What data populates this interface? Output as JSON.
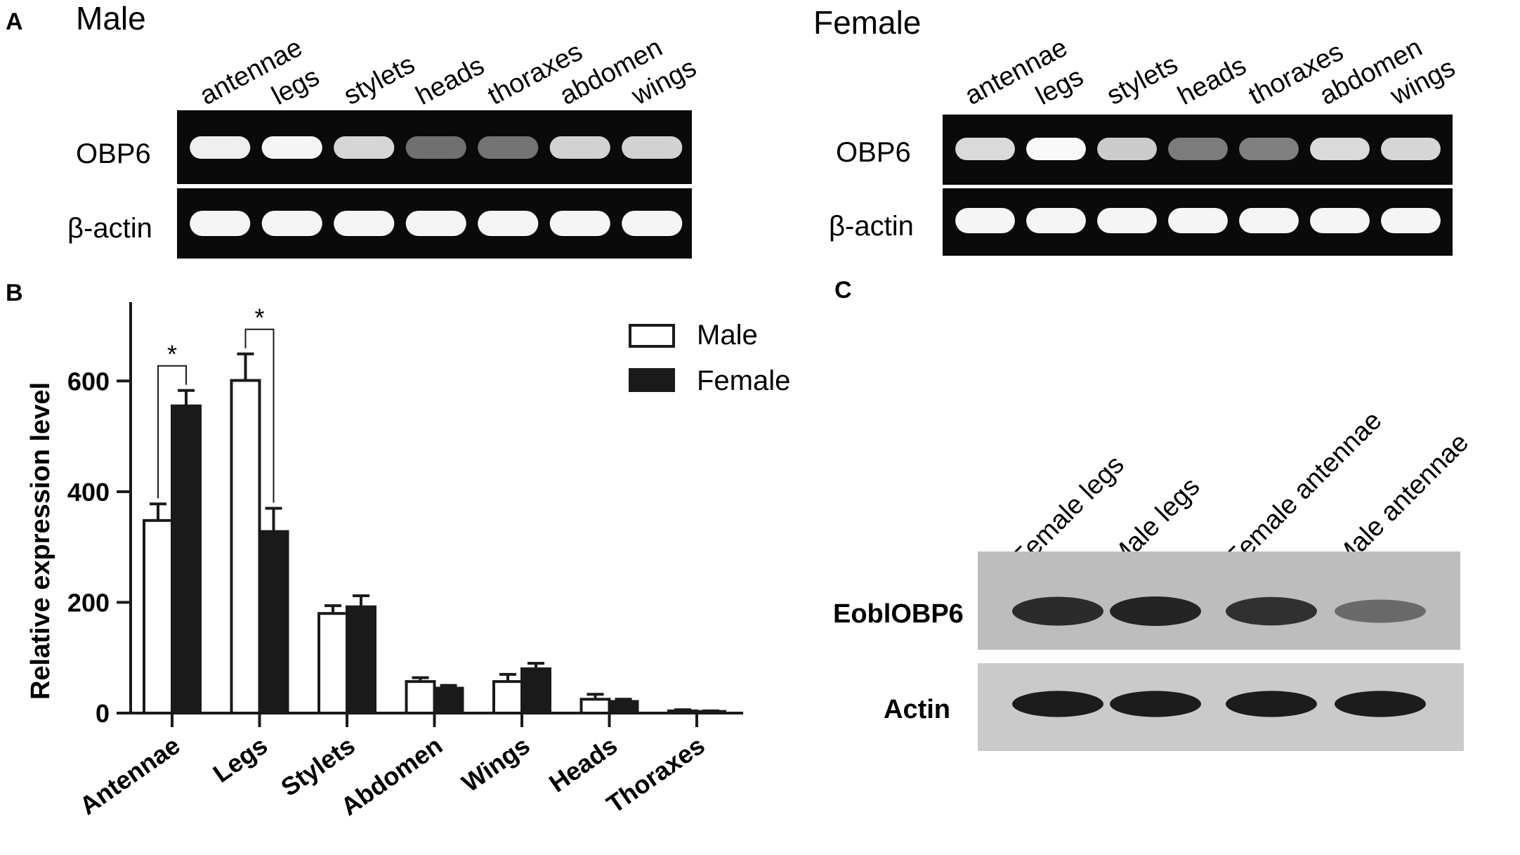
{
  "panels": {
    "a": {
      "letter": "A",
      "male": {
        "title": "Male",
        "lanes": [
          "antennae",
          "legs",
          "stylets",
          "heads",
          "thoraxes",
          "abdomen",
          "wings"
        ],
        "rows": [
          "OBP6",
          "β-actin"
        ],
        "obp6_intensity": [
          0.92,
          0.95,
          0.8,
          0.3,
          0.32,
          0.78,
          0.78
        ],
        "actin_intensity": [
          0.95,
          0.95,
          0.95,
          0.95,
          0.95,
          0.95,
          0.95
        ]
      },
      "female": {
        "title": "Female",
        "lanes": [
          "antennae",
          "legs",
          "stylets",
          "heads",
          "thoraxes",
          "abdomen",
          "wings"
        ],
        "rows": [
          "OBP6",
          "β-actin"
        ],
        "obp6_intensity": [
          0.82,
          0.97,
          0.75,
          0.36,
          0.38,
          0.82,
          0.8
        ],
        "actin_intensity": [
          0.95,
          0.95,
          0.95,
          0.95,
          0.95,
          0.95,
          0.95
        ]
      }
    },
    "b": {
      "letter": "B"
    },
    "c": {
      "letter": "C",
      "lanes": [
        "Female legs",
        "Male legs",
        "Female antennae",
        "Male antennae"
      ],
      "rows": [
        "EoblOBP6",
        "Actin"
      ],
      "obp6_intensity": [
        0.85,
        0.9,
        0.82,
        0.45
      ],
      "actin_intensity": [
        0.95,
        0.95,
        0.95,
        0.95
      ]
    }
  },
  "chart_data": {
    "type": "bar",
    "categories": [
      "Antennae",
      "Legs",
      "Stylets",
      "Abdomen",
      "Wings",
      "Heads",
      "Thoraxes"
    ],
    "series": [
      {
        "name": "Male",
        "values": [
          348,
          601,
          180,
          57,
          57,
          25,
          4
        ],
        "errors": [
          30,
          48,
          14,
          7,
          13,
          9,
          2
        ],
        "color": "#ffffff"
      },
      {
        "name": "Female",
        "values": [
          555,
          328,
          192,
          45,
          80,
          21,
          3
        ],
        "errors": [
          28,
          42,
          20,
          5,
          10,
          4,
          1
        ],
        "color": "#1a1a1a"
      }
    ],
    "ylabel": "Relative  expression level",
    "ylim": [
      0,
      740
    ],
    "yticks": [
      0,
      200,
      400,
      600
    ],
    "legend_position": "top-right",
    "significance": [
      {
        "category": "Antennae",
        "label": "*"
      },
      {
        "category": "Legs",
        "label": "*"
      }
    ]
  }
}
